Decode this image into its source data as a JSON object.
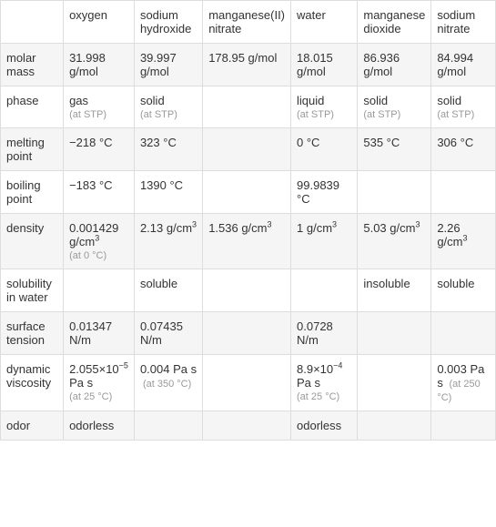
{
  "columns": [
    "oxygen",
    "sodium hydroxide",
    "manganese(II) nitrate",
    "water",
    "manganese dioxide",
    "sodium nitrate"
  ],
  "rows": [
    {
      "label": "molar mass",
      "cells": [
        {
          "v": "31.998 g/mol"
        },
        {
          "v": "39.997 g/mol"
        },
        {
          "v": "178.95 g/mol"
        },
        {
          "v": "18.015 g/mol"
        },
        {
          "v": "86.936 g/mol"
        },
        {
          "v": "84.994 g/mol"
        }
      ]
    },
    {
      "label": "phase",
      "cells": [
        {
          "v": "gas",
          "sub": "(at STP)"
        },
        {
          "v": "solid",
          "sub": "(at STP)"
        },
        {
          "v": ""
        },
        {
          "v": "liquid",
          "sub": "(at STP)"
        },
        {
          "v": "solid",
          "sub": "(at STP)"
        },
        {
          "v": "solid",
          "sub": "(at STP)"
        }
      ]
    },
    {
      "label": "melting point",
      "cells": [
        {
          "v": "−218 °C"
        },
        {
          "v": "323 °C"
        },
        {
          "v": ""
        },
        {
          "v": "0 °C"
        },
        {
          "v": "535 °C"
        },
        {
          "v": "306 °C"
        }
      ]
    },
    {
      "label": "boiling point",
      "cells": [
        {
          "v": "−183 °C"
        },
        {
          "v": "1390 °C"
        },
        {
          "v": ""
        },
        {
          "v": "99.9839 °C"
        },
        {
          "v": ""
        },
        {
          "v": ""
        }
      ]
    },
    {
      "label": "density",
      "cells": [
        {
          "html": "0.001429 g/cm<sup>3</sup>",
          "sub": "(at 0 °C)"
        },
        {
          "html": "2.13 g/cm<sup>3</sup>"
        },
        {
          "html": "1.536 g/cm<sup>3</sup>"
        },
        {
          "html": "1 g/cm<sup>3</sup>"
        },
        {
          "html": "5.03 g/cm<sup>3</sup>"
        },
        {
          "html": "2.26 g/cm<sup>3</sup>"
        }
      ]
    },
    {
      "label": "solubility in water",
      "cells": [
        {
          "v": ""
        },
        {
          "v": "soluble"
        },
        {
          "v": ""
        },
        {
          "v": ""
        },
        {
          "v": "insoluble"
        },
        {
          "v": "soluble"
        }
      ]
    },
    {
      "label": "surface tension",
      "cells": [
        {
          "v": "0.01347 N/m"
        },
        {
          "v": "0.07435 N/m"
        },
        {
          "v": ""
        },
        {
          "v": "0.0728 N/m"
        },
        {
          "v": ""
        },
        {
          "v": ""
        }
      ]
    },
    {
      "label": "dynamic viscosity",
      "cells": [
        {
          "html": "2.055×10<sup>−5</sup> Pa s",
          "sub": "(at 25 °C)"
        },
        {
          "v": "0.004 Pa s",
          "subinline": "(at 350 °C)"
        },
        {
          "v": ""
        },
        {
          "html": "8.9×10<sup>−4</sup> Pa s",
          "sub": "(at 25 °C)"
        },
        {
          "v": ""
        },
        {
          "v": "0.003 Pa s",
          "subinline": "(at 250 °C)"
        }
      ]
    },
    {
      "label": "odor",
      "cells": [
        {
          "v": "odorless"
        },
        {
          "v": ""
        },
        {
          "v": ""
        },
        {
          "v": "odorless"
        },
        {
          "v": ""
        },
        {
          "v": ""
        }
      ]
    }
  ],
  "style": {
    "odd_row_bg": "#f5f5f5",
    "even_row_bg": "#ffffff",
    "border_color": "#dddddd",
    "text_color": "#333333",
    "sub_color": "#999999",
    "font_size": 13,
    "sub_font_size": 11
  }
}
